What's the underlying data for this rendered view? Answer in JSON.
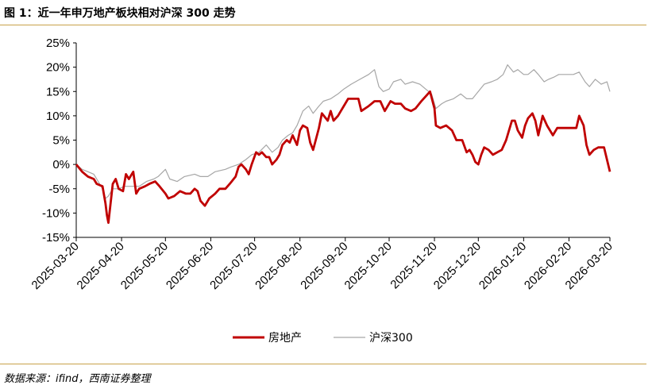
{
  "header": {
    "title": "图 1：近一年申万地产板块相对沪深 300 走势"
  },
  "footer": {
    "source": "数据来源：ifind，西南证券整理"
  },
  "colors": {
    "real_estate": "#c00000",
    "csi300": "#a6a6a6",
    "accent_rule": "#c8a24a"
  },
  "chart_data": {
    "type": "line",
    "title": "",
    "xlabel": "",
    "ylabel": "",
    "ylim": [
      -15,
      25
    ],
    "yticks": [
      "25%",
      "20%",
      "15%",
      "10%",
      "5%",
      "0%",
      "-5%",
      "-10%",
      "-15%"
    ],
    "xlim": [
      "2025-03-20",
      "2026-03-20"
    ],
    "xticks": [
      "2025-03-20",
      "2025-04-20",
      "2025-05-20",
      "2025-06-20",
      "2025-07-20",
      "2025-08-20",
      "2025-09-20",
      "2025-10-20",
      "2025-11-20",
      "2025-12-20",
      "2026-01-20",
      "2026-02-20",
      "2026-03-20"
    ],
    "legend_position": "bottom",
    "grid": false,
    "series": [
      {
        "name": "房地产",
        "color": "#c00000",
        "points": [
          [
            "2025-03-20",
            0
          ],
          [
            "2025-03-24",
            -1.5
          ],
          [
            "2025-03-28",
            -2.5
          ],
          [
            "2025-04-01",
            -3
          ],
          [
            "2025-04-03",
            -4
          ],
          [
            "2025-04-07",
            -4.5
          ],
          [
            "2025-04-09",
            -8
          ],
          [
            "2025-04-10",
            -10.5
          ],
          [
            "2025-04-11",
            -12
          ],
          [
            "2025-04-14",
            -4
          ],
          [
            "2025-04-16",
            -3
          ],
          [
            "2025-04-18",
            -5
          ],
          [
            "2025-04-21",
            -5.5
          ],
          [
            "2025-04-23",
            -2
          ],
          [
            "2025-04-25",
            -3
          ],
          [
            "2025-04-28",
            -1.5
          ],
          [
            "2025-04-30",
            -6
          ],
          [
            "2025-05-02",
            -5
          ],
          [
            "2025-05-06",
            -4.5
          ],
          [
            "2025-05-09",
            -4
          ],
          [
            "2025-05-13",
            -3.5
          ],
          [
            "2025-05-16",
            -4.5
          ],
          [
            "2025-05-20",
            -6
          ],
          [
            "2025-05-22",
            -7
          ],
          [
            "2025-05-26",
            -6.5
          ],
          [
            "2025-05-30",
            -5.5
          ],
          [
            "2025-06-03",
            -6
          ],
          [
            "2025-06-06",
            -6
          ],
          [
            "2025-06-09",
            -5
          ],
          [
            "2025-06-11",
            -5.5
          ],
          [
            "2025-06-13",
            -7.5
          ],
          [
            "2025-06-16",
            -8.5
          ],
          [
            "2025-06-19",
            -7
          ],
          [
            "2025-06-23",
            -6
          ],
          [
            "2025-06-26",
            -5
          ],
          [
            "2025-06-30",
            -5
          ],
          [
            "2025-07-03",
            -4
          ],
          [
            "2025-07-07",
            -2.5
          ],
          [
            "2025-07-09",
            -0.5
          ],
          [
            "2025-07-11",
            0
          ],
          [
            "2025-07-14",
            -1
          ],
          [
            "2025-07-16",
            -2
          ],
          [
            "2025-07-18",
            0
          ],
          [
            "2025-07-21",
            2.5
          ],
          [
            "2025-07-23",
            2
          ],
          [
            "2025-07-25",
            2.5
          ],
          [
            "2025-07-28",
            1.5
          ],
          [
            "2025-07-30",
            1.5
          ],
          [
            "2025-08-01",
            0
          ],
          [
            "2025-08-04",
            1
          ],
          [
            "2025-08-06",
            2
          ],
          [
            "2025-08-08",
            4
          ],
          [
            "2025-08-11",
            5
          ],
          [
            "2025-08-13",
            4.5
          ],
          [
            "2025-08-15",
            6
          ],
          [
            "2025-08-18",
            4
          ],
          [
            "2025-08-20",
            7
          ],
          [
            "2025-08-22",
            8
          ],
          [
            "2025-08-25",
            7.5
          ],
          [
            "2025-08-27",
            4.5
          ],
          [
            "2025-08-29",
            3
          ],
          [
            "2025-09-02",
            7.5
          ],
          [
            "2025-09-04",
            10.5
          ],
          [
            "2025-09-08",
            9
          ],
          [
            "2025-09-10",
            11
          ],
          [
            "2025-09-12",
            9
          ],
          [
            "2025-09-15",
            10
          ],
          [
            "2025-09-17",
            11
          ],
          [
            "2025-09-19",
            12
          ],
          [
            "2025-09-22",
            13.5
          ],
          [
            "2025-09-25",
            13.5
          ],
          [
            "2025-09-29",
            13.5
          ],
          [
            "2025-10-01",
            11
          ],
          [
            "2025-10-06",
            12
          ],
          [
            "2025-10-10",
            13
          ],
          [
            "2025-10-14",
            13
          ],
          [
            "2025-10-17",
            11
          ],
          [
            "2025-10-21",
            13
          ],
          [
            "2025-10-24",
            12.5
          ],
          [
            "2025-10-28",
            12.5
          ],
          [
            "2025-10-31",
            11.5
          ],
          [
            "2025-11-04",
            11
          ],
          [
            "2025-11-07",
            11.5
          ],
          [
            "2025-11-11",
            13
          ],
          [
            "2025-11-14",
            14
          ],
          [
            "2025-11-17",
            15
          ],
          [
            "2025-11-20",
            11.5
          ],
          [
            "2025-11-21",
            8
          ],
          [
            "2025-11-24",
            7.5
          ],
          [
            "2025-11-28",
            8
          ],
          [
            "2025-12-02",
            7
          ],
          [
            "2025-12-05",
            5
          ],
          [
            "2025-12-09",
            5
          ],
          [
            "2025-12-12",
            2.5
          ],
          [
            "2025-12-14",
            3
          ],
          [
            "2025-12-16",
            2
          ],
          [
            "2025-12-18",
            0.5
          ],
          [
            "2025-12-20",
            0
          ],
          [
            "2025-12-22",
            2
          ],
          [
            "2025-12-24",
            3.5
          ],
          [
            "2025-12-27",
            3
          ],
          [
            "2025-12-30",
            2
          ],
          [
            "2026-01-02",
            2.5
          ],
          [
            "2026-01-05",
            3
          ],
          [
            "2026-01-08",
            5
          ],
          [
            "2026-01-12",
            9
          ],
          [
            "2026-01-14",
            9
          ],
          [
            "2026-01-16",
            7
          ],
          [
            "2026-01-19",
            5.5
          ],
          [
            "2026-01-21",
            8
          ],
          [
            "2026-01-23",
            9.5
          ],
          [
            "2026-01-26",
            10.5
          ],
          [
            "2026-01-28",
            9
          ],
          [
            "2026-01-30",
            6
          ],
          [
            "2026-02-02",
            10
          ],
          [
            "2026-02-05",
            8
          ],
          [
            "2026-02-09",
            6
          ],
          [
            "2026-02-12",
            7.5
          ],
          [
            "2026-02-16",
            7.5
          ],
          [
            "2026-02-20",
            7.5
          ],
          [
            "2026-02-25",
            7.5
          ],
          [
            "2026-02-27",
            10
          ],
          [
            "2026-03-02",
            8
          ],
          [
            "2026-03-04",
            4
          ],
          [
            "2026-03-06",
            2
          ],
          [
            "2026-03-09",
            3
          ],
          [
            "2026-03-12",
            3.5
          ],
          [
            "2026-03-16",
            3.5
          ],
          [
            "2026-03-18",
            1
          ],
          [
            "2026-03-20",
            -1.5
          ]
        ]
      },
      {
        "name": "沪深300",
        "color": "#a6a6a6",
        "points": [
          [
            "2025-03-20",
            0
          ],
          [
            "2025-03-24",
            -1
          ],
          [
            "2025-03-28",
            -1.5
          ],
          [
            "2025-04-01",
            -2
          ],
          [
            "2025-04-03",
            -3
          ],
          [
            "2025-04-07",
            -5
          ],
          [
            "2025-04-09",
            -7
          ],
          [
            "2025-04-11",
            -6.5
          ],
          [
            "2025-04-14",
            -5
          ],
          [
            "2025-04-18",
            -5
          ],
          [
            "2025-04-22",
            -4.5
          ],
          [
            "2025-04-28",
            -4.5
          ],
          [
            "2025-05-02",
            -4.5
          ],
          [
            "2025-05-07",
            -3.5
          ],
          [
            "2025-05-12",
            -3
          ],
          [
            "2025-05-15",
            -2.5
          ],
          [
            "2025-05-20",
            -1
          ],
          [
            "2025-05-23",
            -3
          ],
          [
            "2025-05-28",
            -3.5
          ],
          [
            "2025-06-02",
            -2.5
          ],
          [
            "2025-06-09",
            -2
          ],
          [
            "2025-06-13",
            -2.5
          ],
          [
            "2025-06-18",
            -2.5
          ],
          [
            "2025-06-23",
            -1.5
          ],
          [
            "2025-06-30",
            -1
          ],
          [
            "2025-07-04",
            -0.5
          ],
          [
            "2025-07-09",
            0
          ],
          [
            "2025-07-14",
            1
          ],
          [
            "2025-07-18",
            2
          ],
          [
            "2025-07-23",
            2.5
          ],
          [
            "2025-07-28",
            4
          ],
          [
            "2025-08-01",
            2.5
          ],
          [
            "2025-08-05",
            3.5
          ],
          [
            "2025-08-08",
            5
          ],
          [
            "2025-08-12",
            6
          ],
          [
            "2025-08-15",
            6.5
          ],
          [
            "2025-08-18",
            8
          ],
          [
            "2025-08-22",
            11
          ],
          [
            "2025-08-26",
            12
          ],
          [
            "2025-08-29",
            10.5
          ],
          [
            "2025-09-02",
            12
          ],
          [
            "2025-09-05",
            13
          ],
          [
            "2025-09-10",
            13.5
          ],
          [
            "2025-09-15",
            14.5
          ],
          [
            "2025-09-19",
            15.5
          ],
          [
            "2025-09-24",
            16.5
          ],
          [
            "2025-09-30",
            17.5
          ],
          [
            "2025-10-06",
            18.5
          ],
          [
            "2025-10-10",
            19.5
          ],
          [
            "2025-10-13",
            16
          ],
          [
            "2025-10-16",
            15
          ],
          [
            "2025-10-20",
            15.5
          ],
          [
            "2025-10-23",
            17
          ],
          [
            "2025-10-28",
            17.5
          ],
          [
            "2025-10-31",
            16.5
          ],
          [
            "2025-11-05",
            17
          ],
          [
            "2025-11-10",
            16.5
          ],
          [
            "2025-11-14",
            15.5
          ],
          [
            "2025-11-18",
            14.5
          ],
          [
            "2025-11-21",
            11.5
          ],
          [
            "2025-11-25",
            12.5
          ],
          [
            "2025-11-28",
            13
          ],
          [
            "2025-12-03",
            13.5
          ],
          [
            "2025-12-08",
            14.5
          ],
          [
            "2025-12-12",
            13.5
          ],
          [
            "2025-12-16",
            13.5
          ],
          [
            "2025-12-20",
            15
          ],
          [
            "2025-12-24",
            16.5
          ],
          [
            "2025-12-29",
            17
          ],
          [
            "2026-01-02",
            17.5
          ],
          [
            "2026-01-06",
            18.5
          ],
          [
            "2026-01-09",
            20.5
          ],
          [
            "2026-01-13",
            19
          ],
          [
            "2026-01-16",
            19.5
          ],
          [
            "2026-01-20",
            18.5
          ],
          [
            "2026-01-23",
            18.5
          ],
          [
            "2026-01-27",
            19.5
          ],
          [
            "2026-01-30",
            18.5
          ],
          [
            "2026-02-03",
            17
          ],
          [
            "2026-02-06",
            17.5
          ],
          [
            "2026-02-10",
            18
          ],
          [
            "2026-02-13",
            18.5
          ],
          [
            "2026-02-18",
            18.5
          ],
          [
            "2026-02-23",
            18.5
          ],
          [
            "2026-02-27",
            19
          ],
          [
            "2026-03-03",
            17
          ],
          [
            "2026-03-06",
            16
          ],
          [
            "2026-03-10",
            17.5
          ],
          [
            "2026-03-14",
            16.5
          ],
          [
            "2026-03-18",
            17
          ],
          [
            "2026-03-20",
            15
          ]
        ]
      }
    ]
  }
}
